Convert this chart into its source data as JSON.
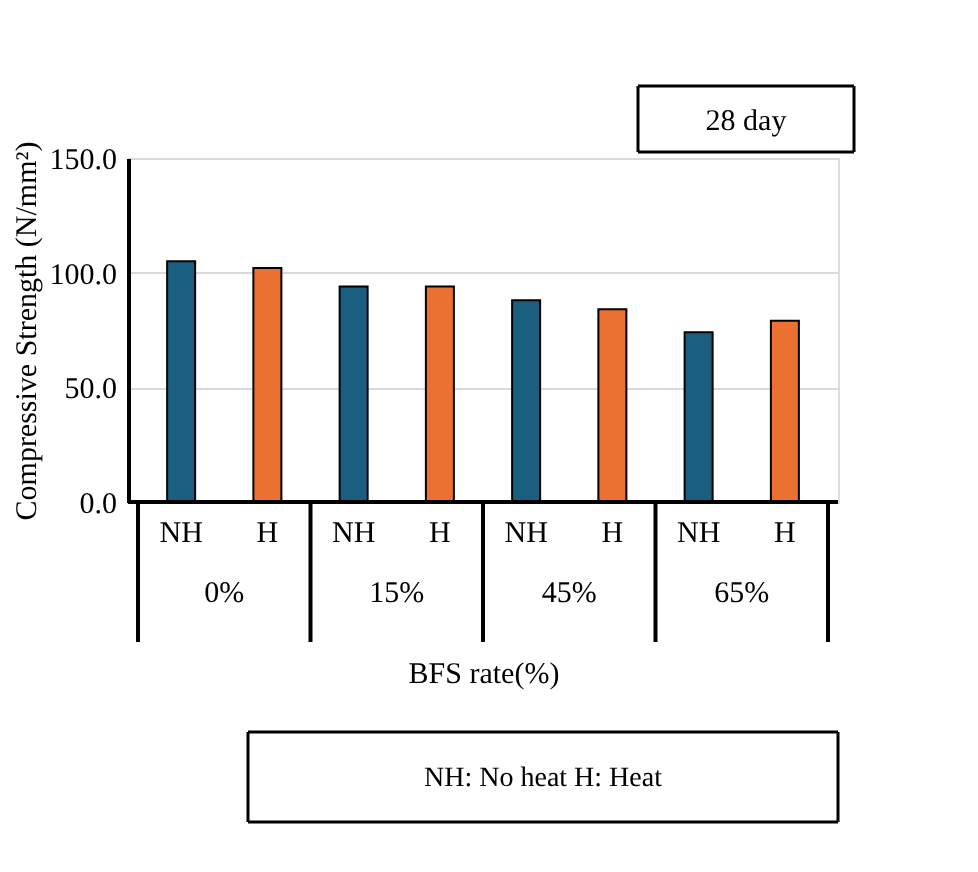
{
  "chart_data": {
    "type": "bar",
    "ylabel": "Compressive Strength (N/mm²)",
    "xlabel": "BFS rate(%)",
    "categories": [
      "NH",
      "H",
      "NH",
      "H",
      "NH",
      "H",
      "NH",
      "H"
    ],
    "values": [
      105,
      102,
      94,
      94,
      88,
      84,
      74,
      79
    ],
    "colors": [
      "#1b5f80",
      "#ea7130",
      "#1b5f80",
      "#ea7130",
      "#1b5f80",
      "#ea7130",
      "#1b5f80",
      "#ea7130"
    ],
    "ylim": [
      0,
      150
    ],
    "yticks": [
      {
        "value": 0,
        "label": "0.0"
      },
      {
        "value": 50,
        "label": "50.0"
      },
      {
        "value": 100,
        "label": "100.0"
      },
      {
        "value": 150,
        "label": "150.0"
      }
    ],
    "grid": "y",
    "annotations": [
      "28 day",
      "NH: No heat   H: Heat",
      "0%",
      "15%",
      "45%",
      "65%"
    ]
  }
}
